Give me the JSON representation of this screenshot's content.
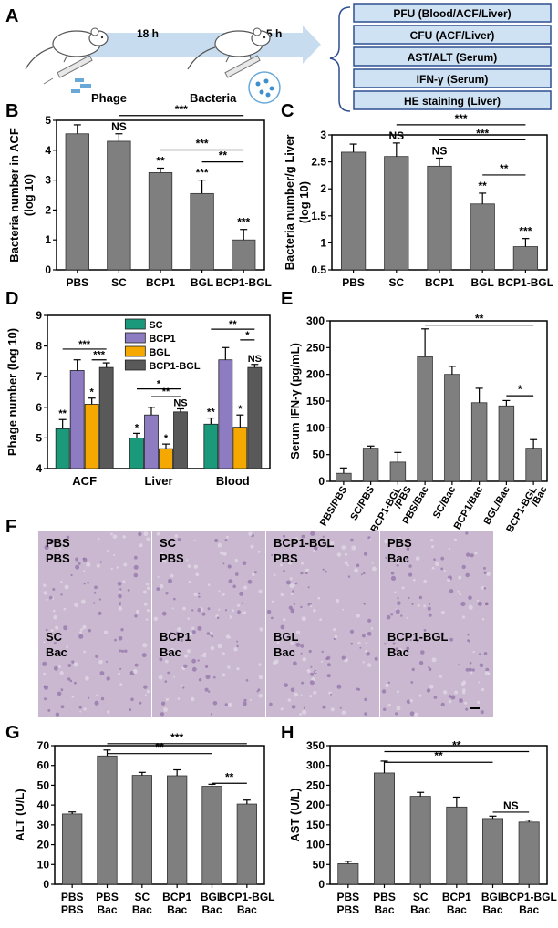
{
  "panels": {
    "A": "A",
    "B": "B",
    "C": "C",
    "D": "D",
    "E": "E",
    "F": "F",
    "G": "G",
    "H": "H"
  },
  "schematic": {
    "time1": "18 h",
    "time2": "5 h",
    "phage": "Phage",
    "bacteria": "Bacteria",
    "assays": [
      "PFU (Blood/ACF/Liver)",
      "CFU (ACF/Liver)",
      "AST/ALT (Serum)",
      "IFN-γ (Serum)",
      "HE staining (Liver)"
    ]
  },
  "colors": {
    "bar": "#7f7f7f",
    "SC": "#1b9a7b",
    "BCP1": "#8e7cc3",
    "BGL": "#f5a800",
    "BCP1-BGL": "#595959",
    "assay_fill": "#cfe2f3",
    "assay_stroke": "#2f4f8f",
    "arrow": "#c7dcef",
    "tissue": "#c9b8cf"
  },
  "histology": {
    "tiles": [
      {
        "l1": "PBS",
        "l2": "PBS"
      },
      {
        "l1": "SC",
        "l2": "PBS"
      },
      {
        "l1": "BCP1-BGL",
        "l2": "PBS"
      },
      {
        "l1": "PBS",
        "l2": "Bac"
      },
      {
        "l1": "SC",
        "l2": "Bac"
      },
      {
        "l1": "BCP1",
        "l2": "Bac"
      },
      {
        "l1": "BGL",
        "l2": "Bac"
      },
      {
        "l1": "BCP1-BGL",
        "l2": "Bac"
      }
    ]
  },
  "chart_data": [
    {
      "id": "B",
      "type": "bar",
      "ylabel_lines": [
        "Bacteria number in ACF",
        "(log 10)"
      ],
      "categories": [
        [
          "PBS"
        ],
        [
          "SC"
        ],
        [
          "BCP1"
        ],
        [
          "BGL"
        ],
        [
          "BCP1-BGL"
        ]
      ],
      "values": [
        4.55,
        4.3,
        3.25,
        2.55,
        1.0
      ],
      "errors": [
        0.3,
        0.25,
        0.15,
        0.45,
        0.35
      ],
      "ylim": [
        0,
        5
      ],
      "yticks": [
        0,
        1,
        2,
        3,
        4,
        5
      ],
      "bar_labels": [
        "",
        "NS",
        "**",
        "***",
        "***"
      ],
      "brackets": [
        {
          "from": 1,
          "to": 4,
          "label": "***",
          "level": 0
        },
        {
          "from": 2,
          "to": 4,
          "label": "***",
          "level": 1
        },
        {
          "from": 3,
          "to": 4,
          "label": "**",
          "level": 2
        }
      ]
    },
    {
      "id": "C",
      "type": "bar",
      "ylabel_lines": [
        "Bacteria number/g Liver",
        "(log 10)"
      ],
      "categories": [
        [
          "PBS"
        ],
        [
          "SC"
        ],
        [
          "BCP1"
        ],
        [
          "BGL"
        ],
        [
          "BCP1-BGL"
        ]
      ],
      "values": [
        2.68,
        2.6,
        2.42,
        1.72,
        0.93
      ],
      "errors": [
        0.15,
        0.25,
        0.15,
        0.2,
        0.15
      ],
      "ylim": [
        0.5,
        3.0
      ],
      "yticks": [
        0.5,
        1.0,
        1.5,
        2.0,
        2.5,
        3.0
      ],
      "bar_labels": [
        "",
        "NS",
        "NS",
        "**",
        "***"
      ],
      "brackets": [
        {
          "from": 1,
          "to": 4,
          "label": "***",
          "level": 0
        },
        {
          "from": 2,
          "to": 4,
          "label": "***",
          "level": 1
        },
        {
          "from": 3,
          "to": 4,
          "label": "**",
          "level": 2
        }
      ]
    },
    {
      "id": "D",
      "type": "grouped-bar",
      "ylabel_lines": [
        "Phage number (log 10)"
      ],
      "categories": [
        "ACF",
        "Liver",
        "Blood"
      ],
      "series": [
        {
          "name": "SC",
          "values": [
            5.3,
            5.0,
            5.45
          ],
          "errors": [
            0.3,
            0.15,
            0.2
          ],
          "labels": [
            "**",
            "*",
            "**"
          ]
        },
        {
          "name": "BCP1",
          "values": [
            7.2,
            5.75,
            7.55
          ],
          "errors": [
            0.35,
            0.25,
            0.4
          ],
          "labels": [
            "",
            "",
            ""
          ]
        },
        {
          "name": "BGL",
          "values": [
            6.1,
            4.65,
            5.35
          ],
          "errors": [
            0.2,
            0.15,
            0.4
          ],
          "labels": [
            "*",
            "*",
            "*"
          ]
        },
        {
          "name": "BCP1-BGL",
          "values": [
            7.3,
            5.85,
            7.3
          ],
          "errors": [
            0.15,
            0.1,
            0.1
          ],
          "labels": [
            "",
            "NS",
            "NS"
          ]
        }
      ],
      "ylim": [
        4,
        9
      ],
      "yticks": [
        4,
        5,
        6,
        7,
        8,
        9
      ],
      "legend": [
        "SC",
        "BCP1",
        "BGL",
        "BCP1-BGL"
      ],
      "brackets": [
        {
          "group": 0,
          "from": 0,
          "to": 3,
          "label": "***",
          "y": 7.9
        },
        {
          "group": 0,
          "from": 2,
          "to": 3,
          "label": "***",
          "y": 7.55
        },
        {
          "group": 1,
          "from": 0,
          "to": 3,
          "label": "*",
          "y": 6.6
        },
        {
          "group": 1,
          "from": 1,
          "to": 3,
          "label": "**",
          "y": 6.35
        },
        {
          "group": 2,
          "from": 0,
          "to": 3,
          "label": "**",
          "y": 8.55
        },
        {
          "group": 2,
          "from": 2,
          "to": 3,
          "label": "*",
          "y": 8.2
        }
      ]
    },
    {
      "id": "E",
      "type": "bar",
      "ylabel_lines": [
        "Serum IFN-γ (pg/mL)"
      ],
      "categories": [
        [
          "PBS/PBS"
        ],
        [
          "SC/PBS"
        ],
        [
          "BCP1-BGL",
          "/PBS"
        ],
        [
          "PBS/Bac"
        ],
        [
          "SC/Bac"
        ],
        [
          "BCP1/Bac"
        ],
        [
          "BGL/Bac"
        ],
        [
          "BCP1-BGL",
          "/Bac"
        ]
      ],
      "values": [
        15,
        62,
        36,
        233,
        200,
        147,
        141,
        62
      ],
      "errors": [
        10,
        4,
        18,
        52,
        15,
        27,
        10,
        16
      ],
      "ylim": [
        0,
        300
      ],
      "yticks": [
        0,
        50,
        100,
        150,
        200,
        250,
        300
      ],
      "bar_labels": [
        "",
        "",
        "",
        "",
        "",
        "",
        "",
        ""
      ],
      "rotated_ticks": true,
      "brackets": [
        {
          "from": 3,
          "to": 7,
          "label": "**",
          "level": 0,
          "y": 292
        },
        {
          "from": 6,
          "to": 7,
          "label": "*",
          "level": 1,
          "y": 160
        }
      ]
    },
    {
      "id": "G",
      "type": "bar",
      "ylabel_lines": [
        "ALT (U/L)"
      ],
      "categories": [
        [
          "PBS",
          "PBS"
        ],
        [
          "PBS",
          "Bac"
        ],
        [
          "SC",
          "Bac"
        ],
        [
          "BCP1",
          "Bac"
        ],
        [
          "BGL",
          "Bac"
        ],
        [
          "BCP1-BGL",
          "Bac"
        ]
      ],
      "values": [
        35.5,
        64.8,
        55,
        54.8,
        49.5,
        40.5
      ],
      "errors": [
        1,
        3,
        1.5,
        3,
        1,
        2
      ],
      "ylim": [
        0,
        70
      ],
      "yticks": [
        0,
        10,
        20,
        30,
        40,
        50,
        60,
        70
      ],
      "bar_labels": [
        "",
        "",
        "",
        "",
        "",
        ""
      ],
      "brackets": [
        {
          "from": 1,
          "to": 5,
          "label": "***",
          "y": 71
        },
        {
          "from": 1,
          "to": 4,
          "label": "**",
          "y": 66
        },
        {
          "from": 4,
          "to": 5,
          "label": "**",
          "y": 51
        }
      ]
    },
    {
      "id": "H",
      "type": "bar",
      "ylabel_lines": [
        "AST (U/L)"
      ],
      "categories": [
        [
          "PBS",
          "PBS"
        ],
        [
          "PBS",
          "Bac"
        ],
        [
          "SC",
          "Bac"
        ],
        [
          "BCP1",
          "Bac"
        ],
        [
          "BGL",
          "Bac"
        ],
        [
          "BCP1-BGL",
          "Bac"
        ]
      ],
      "values": [
        52,
        281,
        222,
        195,
        166,
        157
      ],
      "errors": [
        6,
        30,
        10,
        25,
        6,
        5
      ],
      "ylim": [
        0,
        350
      ],
      "yticks": [
        0,
        50,
        100,
        150,
        200,
        250,
        300,
        350
      ],
      "bar_labels": [
        "",
        "",
        "",
        "",
        "",
        ""
      ],
      "brackets": [
        {
          "from": 1,
          "to": 5,
          "label": "**",
          "y": 335
        },
        {
          "from": 1,
          "to": 4,
          "label": "**",
          "y": 308
        },
        {
          "from": 4,
          "to": 5,
          "label": "NS",
          "y": 182
        }
      ]
    }
  ]
}
